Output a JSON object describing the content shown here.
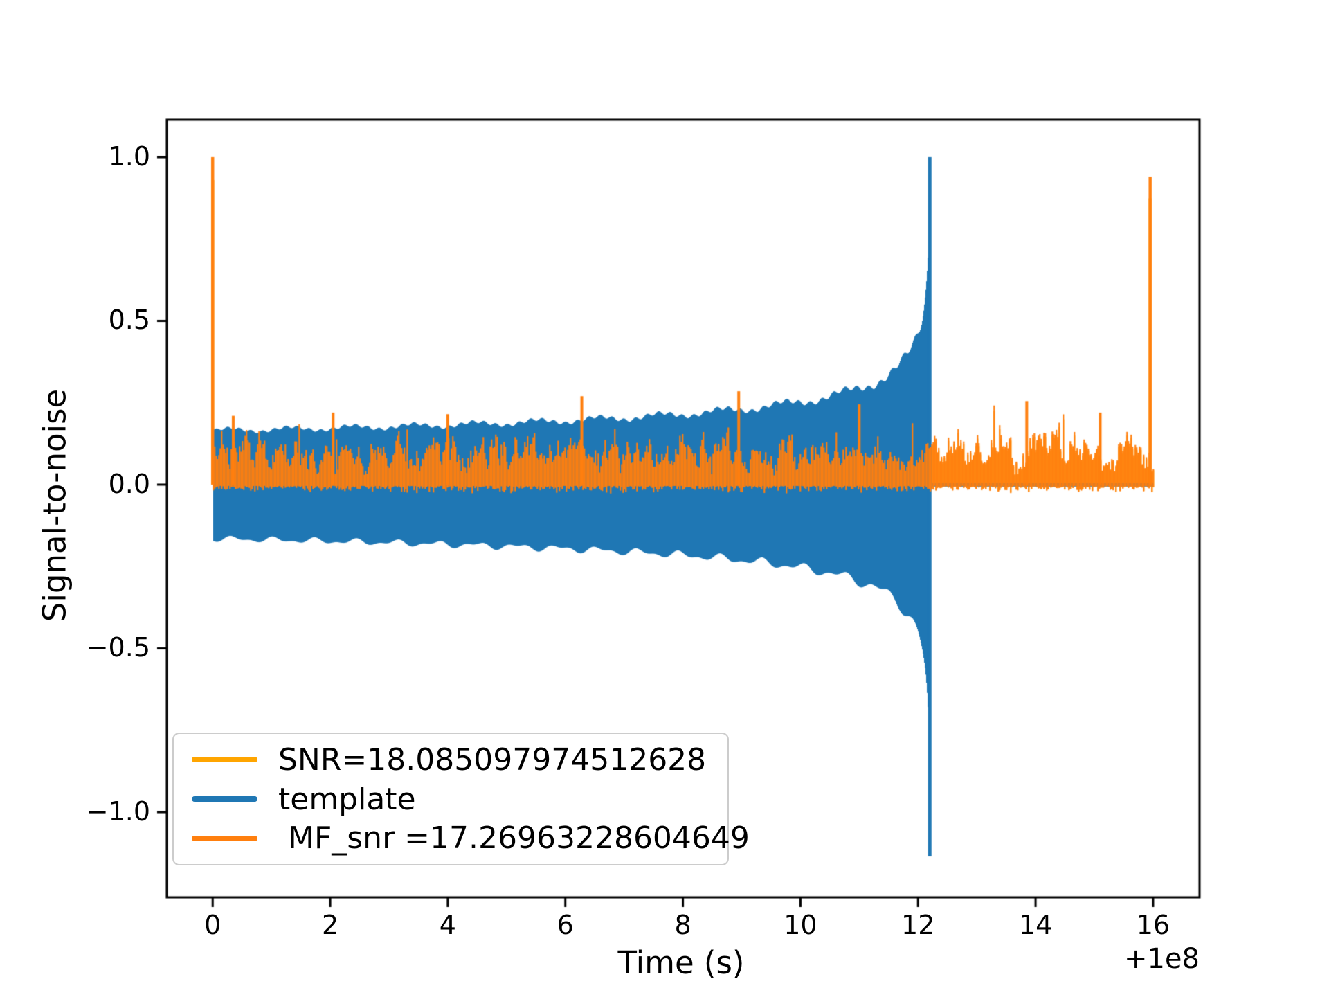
{
  "figure": {
    "background": "#ffffff",
    "text_color": "#000000",
    "spine_color": "#000000"
  },
  "chart_data": {
    "type": "line",
    "title": "",
    "xlabel": "Time (s)",
    "ylabel": "Signal-to-noise",
    "x_offset_text": "+1e8",
    "grid": false,
    "xlim": [
      -0.78,
      16.79
    ],
    "ylim": [
      -1.26,
      1.114
    ],
    "xticks": [
      {
        "value": 0,
        "label": "0"
      },
      {
        "value": 2,
        "label": "2"
      },
      {
        "value": 4,
        "label": "4"
      },
      {
        "value": 6,
        "label": "6"
      },
      {
        "value": 8,
        "label": "8"
      },
      {
        "value": 10,
        "label": "10"
      },
      {
        "value": 12,
        "label": "12"
      },
      {
        "value": 14,
        "label": "14"
      },
      {
        "value": 16,
        "label": "16"
      }
    ],
    "yticks": [
      {
        "value": 1.0,
        "label": "1.0"
      },
      {
        "value": 0.5,
        "label": "0.5"
      },
      {
        "value": 0.0,
        "label": "0.0"
      },
      {
        "value": -0.5,
        "label": "−0.5"
      },
      {
        "value": -1.0,
        "label": "−1.0"
      }
    ],
    "legend": {
      "position": "lower-left",
      "border_color": "#cccccc",
      "background": "#ffffff"
    },
    "noise_seed": 42,
    "series": [
      {
        "name": "SNR",
        "label": "SNR=18.085097974512628",
        "color": "#FFA500",
        "kind": "snr-noise",
        "role": "behind",
        "x_range": [
          0,
          16
        ],
        "noise_band": [
          0,
          0.2
        ],
        "spikes": [
          {
            "x": 0.0,
            "y": 1.0
          },
          {
            "x": 15.95,
            "y": 0.94
          }
        ]
      },
      {
        "name": "template",
        "label": "template",
        "color": "#1F77B4",
        "kind": "chirp-template",
        "x_range": [
          0,
          16
        ],
        "start_amplitude": 0.165,
        "merger_time": 12.2,
        "peak": 1.0,
        "min": -1.135,
        "post_merger_level": 0.0
      },
      {
        "name": "MF_snr",
        "label": " MF_snr =17.26963228604649",
        "color": "#FF7F0E",
        "kind": "snr-noise",
        "role": "front",
        "x_range": [
          0,
          16
        ],
        "noise_band": [
          0,
          0.2
        ],
        "spikes": [
          {
            "x": 0.0,
            "y": 1.0
          },
          {
            "x": 15.95,
            "y": 0.94
          }
        ],
        "notable_peaks": [
          {
            "x": 0.35,
            "y": 0.21
          },
          {
            "x": 2.05,
            "y": 0.22
          },
          {
            "x": 4.0,
            "y": 0.215
          },
          {
            "x": 6.28,
            "y": 0.27
          },
          {
            "x": 8.95,
            "y": 0.285
          },
          {
            "x": 11.0,
            "y": 0.245
          },
          {
            "x": 13.85,
            "y": 0.255
          },
          {
            "x": 15.1,
            "y": 0.22
          }
        ]
      }
    ]
  }
}
